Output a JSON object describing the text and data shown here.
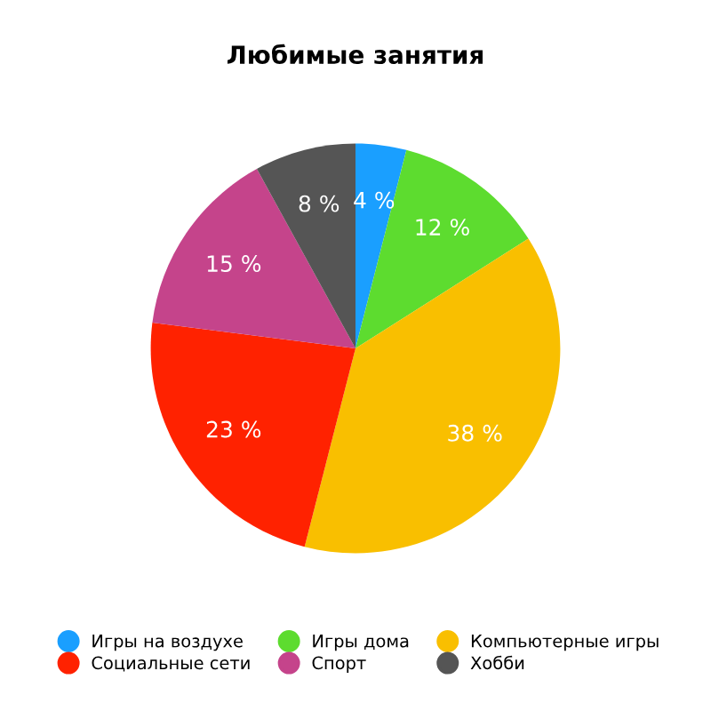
{
  "chart_data": {
    "type": "pie",
    "title": "Любимые занятия",
    "categories": [
      "Игры на воздухе",
      "Игры дома",
      "Компьютерные игры",
      "Социальные сети",
      "Спорт",
      "Хобби"
    ],
    "values": [
      4,
      12,
      38,
      23,
      15,
      8
    ],
    "value_labels": [
      "4 %",
      "12 %",
      "38 %",
      "23 %",
      "15 %",
      "8 %"
    ],
    "colors": [
      "#1a9fff",
      "#5ddc2f",
      "#f9bf00",
      "#ff2200",
      "#c5448b",
      "#555555"
    ],
    "legend": "bottom"
  }
}
